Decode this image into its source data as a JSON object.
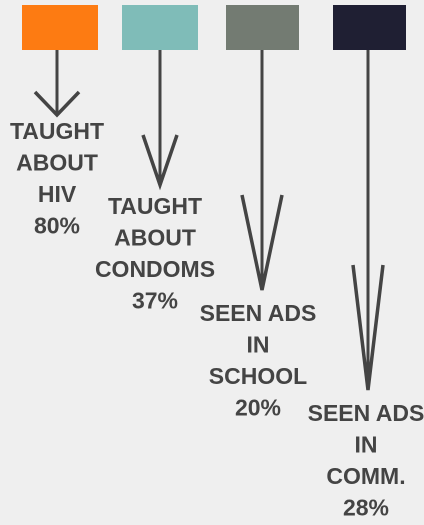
{
  "items": [
    {
      "lines": [
        "TAUGHT",
        "ABOUT",
        "HIV"
      ],
      "value": "80%",
      "color": "#fd7b12"
    },
    {
      "lines": [
        "TAUGHT",
        "ABOUT",
        "CONDOMS"
      ],
      "value": "37%",
      "color": "#7fbcb8"
    },
    {
      "lines": [
        "SEEN ADS",
        "IN",
        "SCHOOL"
      ],
      "value": "20%",
      "color": "#737b72"
    },
    {
      "lines": [
        "SEEN ADS",
        "IN",
        "COMM."
      ],
      "value": "28%",
      "color": "#1f1f33"
    }
  ]
}
